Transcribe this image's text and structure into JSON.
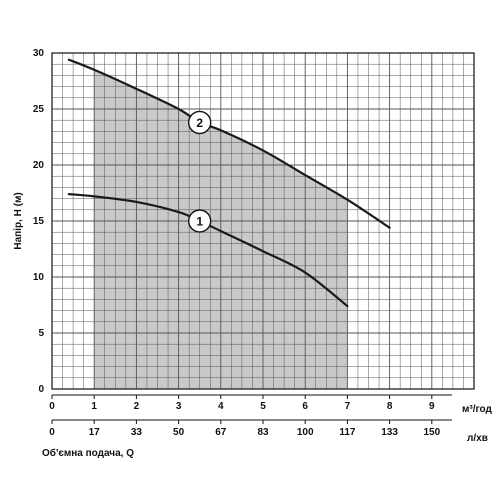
{
  "chart_data": {
    "type": "line",
    "title": "",
    "ylabel": "Напір, Н (м)",
    "xlabel": "Об'ємна подача, Q",
    "ylim": [
      0,
      30
    ],
    "xlim": [
      0,
      10
    ],
    "grid": true,
    "y_ticks": [
      "0",
      "5",
      "10",
      "15",
      "20",
      "25",
      "30"
    ],
    "x_ticks_primary": {
      "unit": "м³/год",
      "values": [
        0,
        1,
        2,
        3,
        4,
        5,
        6,
        7,
        8,
        9
      ],
      "labels": [
        "0",
        "1",
        "2",
        "3",
        "4",
        "5",
        "6",
        "7",
        "8",
        "9"
      ]
    },
    "x_ticks_secondary": {
      "unit": "л/хв",
      "values": [
        0,
        1,
        2,
        3,
        4,
        5,
        6,
        7,
        8,
        9
      ],
      "labels": [
        "0",
        "17",
        "33",
        "50",
        "67",
        "83",
        "100",
        "117",
        "133",
        "150"
      ]
    },
    "operating_range": {
      "x_start": 1,
      "x_end": 7,
      "color": "#c9c9c9"
    },
    "series": [
      {
        "name": "1",
        "color": "#1a1a1a",
        "x": [
          0.4,
          1,
          2,
          3,
          3.5,
          4,
          5,
          6,
          7
        ],
        "y": [
          17.4,
          17.2,
          16.7,
          15.8,
          15.0,
          14.1,
          12.3,
          10.4,
          7.4
        ],
        "label_at": {
          "x": 3.5,
          "y": 15.0
        }
      },
      {
        "name": "2",
        "color": "#1a1a1a",
        "x": [
          0.4,
          1,
          2,
          3,
          3.5,
          4,
          5,
          6,
          7,
          8
        ],
        "y": [
          29.4,
          28.5,
          26.8,
          25.0,
          23.8,
          23.1,
          21.3,
          19.1,
          16.9,
          14.4
        ],
        "label_at": {
          "x": 3.5,
          "y": 23.8
        }
      }
    ]
  }
}
